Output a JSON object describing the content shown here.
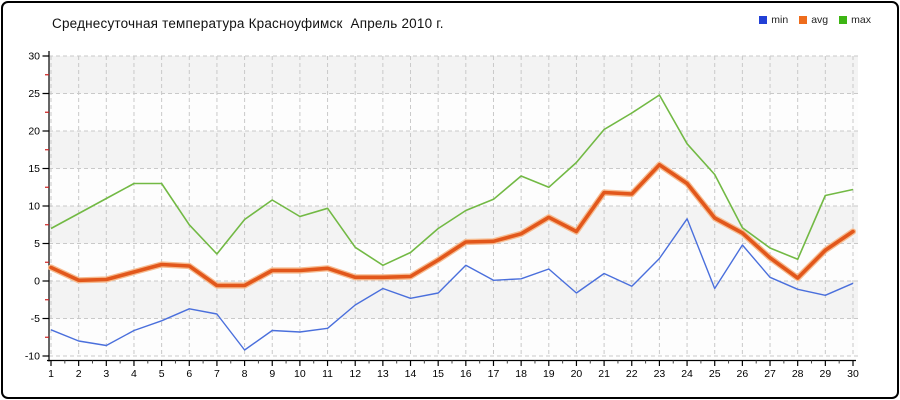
{
  "window": {
    "background": "#ffffff",
    "border_color": "#000000"
  },
  "header": {
    "title": "Среднесуточная температура Красноуфимск  Апрель 2010 г."
  },
  "legend": {
    "items": [
      {
        "label": "min",
        "color": "#2240d6"
      },
      {
        "label": "avg",
        "color": "#ee6c1c"
      },
      {
        "label": "max",
        "color": "#3db513"
      }
    ]
  },
  "chart_data": {
    "type": "line",
    "title": "Среднесуточная температура Красноуфимск  Апрель 2010 г.",
    "xlabel": "",
    "ylabel": "",
    "categories": [
      1,
      2,
      3,
      4,
      5,
      6,
      7,
      8,
      9,
      10,
      11,
      12,
      13,
      14,
      15,
      16,
      17,
      18,
      19,
      20,
      21,
      22,
      23,
      24,
      25,
      26,
      27,
      28,
      29,
      30
    ],
    "series": [
      {
        "name": "min",
        "color": "#4a6fdc",
        "width": 1.4,
        "values": [
          -6.5,
          -8.0,
          -8.6,
          -6.6,
          -5.3,
          -3.7,
          -4.4,
          -9.2,
          -6.6,
          -6.8,
          -6.3,
          -3.2,
          -1.0,
          -2.3,
          -1.6,
          2.1,
          0.1,
          0.3,
          1.6,
          -1.6,
          1.0,
          -0.7,
          3.0,
          8.3,
          -1.0,
          4.8,
          0.5,
          -1.1,
          -1.9,
          -0.3
        ]
      },
      {
        "name": "avg",
        "color": "#e2571b",
        "halo": "#f6bb8f",
        "width": 3.6,
        "values": [
          1.8,
          0.1,
          0.2,
          1.2,
          2.2,
          2.0,
          -0.6,
          -0.6,
          1.4,
          1.4,
          1.7,
          0.5,
          0.5,
          0.6,
          2.8,
          5.2,
          5.3,
          6.3,
          8.5,
          6.6,
          11.8,
          11.6,
          15.5,
          13.0,
          8.4,
          6.4,
          3.1,
          0.4,
          4.1,
          6.6
        ]
      },
      {
        "name": "max",
        "color": "#72b944",
        "width": 1.6,
        "values": [
          7.0,
          9.0,
          11.0,
          13.0,
          13.0,
          7.5,
          3.6,
          8.2,
          10.8,
          8.6,
          9.7,
          4.5,
          2.1,
          3.8,
          7.0,
          9.4,
          10.9,
          14.0,
          12.5,
          15.8,
          20.2,
          22.4,
          24.8,
          18.3,
          14.2,
          7.1,
          4.4,
          2.9,
          11.4,
          12.2
        ]
      }
    ],
    "ylim": [
      -10,
      30
    ],
    "yticks": [
      30,
      25,
      20,
      15,
      10,
      5,
      0,
      -5,
      -10
    ],
    "ytick_minor_step": 2.5,
    "grid": "dashed",
    "grid_color": "#c9c9c9",
    "band_colors": [
      "#f3f3f3",
      "#fdfdfd"
    ],
    "axis_color": "#000000",
    "minor_tick_color": "#cc2222",
    "legend_position": "top-right"
  }
}
